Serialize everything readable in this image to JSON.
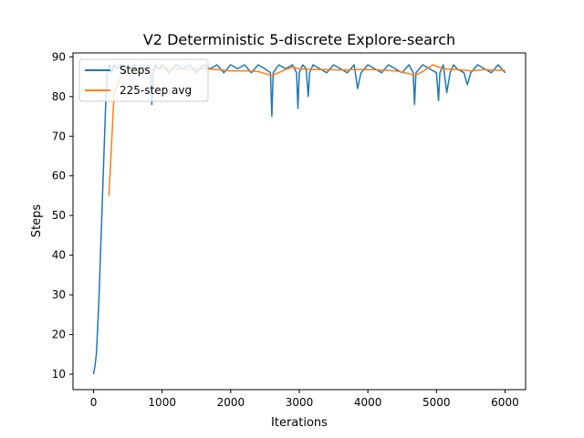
{
  "chart_data": {
    "type": "line",
    "title": "V2 Deterministic 5-discrete Explore-search",
    "xlabel": "Iterations",
    "ylabel": "Steps",
    "xlim": [
      -300,
      6300
    ],
    "ylim": [
      6.1,
      91.0
    ],
    "xticks": [
      0,
      1000,
      2000,
      3000,
      4000,
      5000,
      6000
    ],
    "yticks": [
      10,
      20,
      30,
      40,
      50,
      60,
      70,
      80,
      90
    ],
    "grid": false,
    "legend_position": "top-left",
    "series": [
      {
        "name": "Steps",
        "color": "#1f77b4",
        "x": [
          0,
          20,
          40,
          60,
          80,
          100,
          120,
          140,
          160,
          180,
          200,
          230,
          260,
          300,
          350,
          400,
          450,
          500,
          550,
          600,
          650,
          700,
          750,
          800,
          830,
          850,
          870,
          900,
          950,
          1000,
          1100,
          1200,
          1300,
          1400,
          1500,
          1600,
          1700,
          1800,
          1900,
          2000,
          2100,
          2200,
          2300,
          2400,
          2500,
          2580,
          2600,
          2620,
          2700,
          2800,
          2900,
          2960,
          2980,
          3000,
          3050,
          3100,
          3130,
          3150,
          3200,
          3300,
          3400,
          3500,
          3600,
          3700,
          3800,
          3850,
          3900,
          4000,
          4100,
          4200,
          4300,
          4400,
          4500,
          4600,
          4660,
          4680,
          4700,
          4800,
          4900,
          5000,
          5030,
          5050,
          5100,
          5150,
          5200,
          5250,
          5300,
          5400,
          5450,
          5500,
          5600,
          5700,
          5800,
          5900,
          6000
        ],
        "y": [
          10,
          12,
          15,
          22,
          30,
          40,
          50,
          60,
          70,
          80,
          86,
          88,
          86,
          88,
          87,
          88,
          86,
          88,
          87,
          88,
          86,
          88,
          87,
          88,
          86,
          78,
          86,
          88,
          87,
          88,
          86,
          88,
          87,
          88,
          86,
          88,
          87,
          88,
          86,
          88,
          87,
          88,
          86,
          88,
          87,
          86,
          75,
          86,
          88,
          87,
          88,
          86,
          77,
          86,
          88,
          87,
          80,
          86,
          88,
          87,
          86,
          88,
          87,
          86,
          88,
          82,
          86,
          88,
          87,
          86,
          88,
          87,
          86,
          88,
          86,
          78,
          86,
          88,
          87,
          86,
          79,
          86,
          88,
          81,
          86,
          88,
          87,
          86,
          83,
          86,
          88,
          87,
          86,
          88,
          86
        ]
      },
      {
        "name": "225-step avg",
        "color": "#ff7f0e",
        "x": [
          224,
          300,
          400,
          500,
          600,
          700,
          800,
          900,
          1000,
          1200,
          1400,
          1600,
          1800,
          2000,
          2200,
          2400,
          2600,
          2800,
          2900,
          3000,
          3200,
          3400,
          3600,
          3800,
          4000,
          4200,
          4400,
          4600,
          4680,
          4800,
          4950,
          5100,
          5300,
          5500,
          5700,
          5900,
          6000
        ],
        "y": [
          55,
          81,
          85,
          86.5,
          87,
          87,
          86.8,
          87,
          87.2,
          87,
          86.8,
          87,
          86.8,
          86.5,
          86.5,
          86.3,
          85.3,
          86.8,
          87.4,
          87,
          86.8,
          86.8,
          86.7,
          86.8,
          86.8,
          86.7,
          86.5,
          85.8,
          85.3,
          86.3,
          88,
          87,
          86.8,
          86.5,
          86.8,
          86.6,
          86.6
        ]
      }
    ]
  }
}
